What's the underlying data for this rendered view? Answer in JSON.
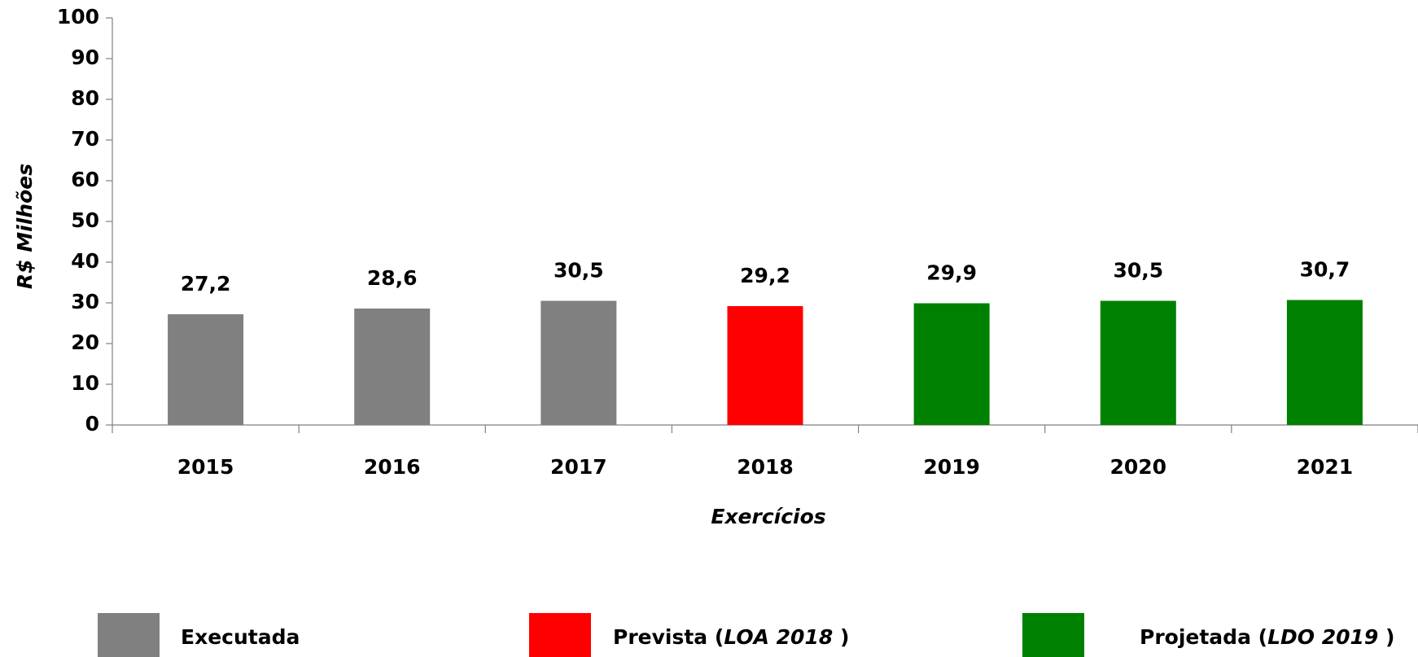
{
  "chart_data": {
    "type": "bar",
    "x_label": "Exercícios",
    "y_label": "R$ Milhões",
    "categories": [
      "2015",
      "2016",
      "2017",
      "2018",
      "2019",
      "2020",
      "2021"
    ],
    "series": [
      {
        "name": "Executada",
        "color": "#808080",
        "values": [
          27.2,
          28.6,
          30.5,
          null,
          null,
          null,
          null
        ],
        "value_labels": [
          "27,2",
          "28,6",
          "30,5",
          null,
          null,
          null,
          null
        ]
      },
      {
        "name": "Prevista (LOA 2018 )",
        "color": "#ff0000",
        "values": [
          null,
          null,
          null,
          29.2,
          null,
          null,
          null
        ],
        "value_labels": [
          null,
          null,
          null,
          "29,2",
          null,
          null,
          null
        ]
      },
      {
        "name": "Projetada (LDO 2019 )",
        "color": "#008000",
        "values": [
          null,
          null,
          null,
          null,
          29.9,
          30.5,
          30.7
        ],
        "value_labels": [
          null,
          null,
          null,
          null,
          "29,9",
          "30,5",
          "30,7"
        ]
      }
    ],
    "ylim": [
      0,
      100
    ],
    "yticks": [
      0,
      10,
      20,
      30,
      40,
      50,
      60,
      70,
      80,
      90,
      100
    ],
    "grid": false,
    "legend": "bottom"
  }
}
